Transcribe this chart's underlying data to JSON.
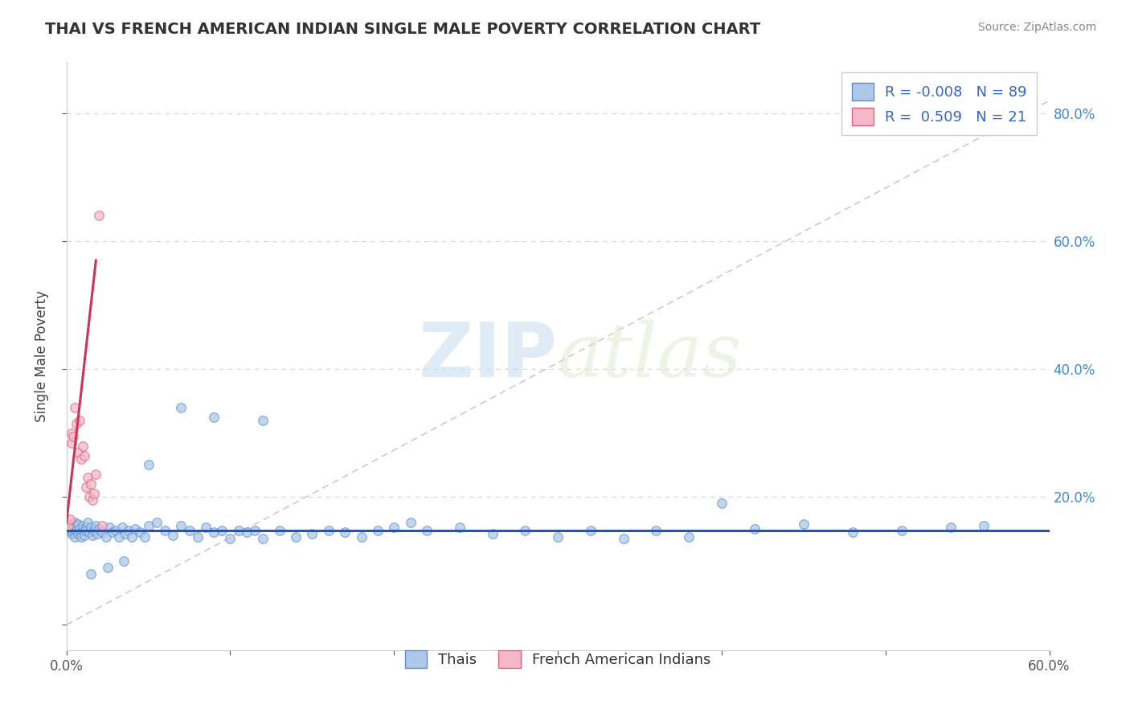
{
  "title": "THAI VS FRENCH AMERICAN INDIAN SINGLE MALE POVERTY CORRELATION CHART",
  "source": "Source: ZipAtlas.com",
  "ylabel": "Single Male Poverty",
  "xlim": [
    0.0,
    0.6
  ],
  "ylim": [
    -0.04,
    0.88
  ],
  "ytick_positions": [
    0.0,
    0.2,
    0.4,
    0.6,
    0.8
  ],
  "ytick_labels": [
    "",
    "20.0%",
    "40.0%",
    "60.0%",
    "80.0%"
  ],
  "xtick_positions": [
    0.0,
    0.1,
    0.2,
    0.3,
    0.4,
    0.5,
    0.6
  ],
  "xtick_labels": [
    "0.0%",
    "",
    "",
    "",
    "",
    "",
    "60.0%"
  ],
  "watermark_zip": "ZIP",
  "watermark_atlas": "atlas",
  "legend_R1": "-0.008",
  "legend_N1": "89",
  "legend_R2": "0.509",
  "legend_N2": "21",
  "color_thai_fill": "#adc8e8",
  "color_thai_edge": "#5b8fcc",
  "color_fai_fill": "#f5b8c8",
  "color_fai_edge": "#d86080",
  "color_thai_line": "#2255bb",
  "color_fai_line": "#cc3355",
  "color_diag_line": "#ccaaaa",
  "thai_x": [
    0.001,
    0.002,
    0.002,
    0.003,
    0.003,
    0.004,
    0.004,
    0.005,
    0.005,
    0.006,
    0.006,
    0.007,
    0.007,
    0.008,
    0.008,
    0.009,
    0.01,
    0.01,
    0.011,
    0.012,
    0.012,
    0.013,
    0.014,
    0.015,
    0.016,
    0.017,
    0.018,
    0.019,
    0.02,
    0.022,
    0.024,
    0.026,
    0.028,
    0.03,
    0.032,
    0.034,
    0.036,
    0.038,
    0.04,
    0.042,
    0.045,
    0.048,
    0.05,
    0.055,
    0.06,
    0.065,
    0.07,
    0.075,
    0.08,
    0.085,
    0.09,
    0.095,
    0.1,
    0.105,
    0.11,
    0.115,
    0.12,
    0.13,
    0.14,
    0.15,
    0.16,
    0.17,
    0.18,
    0.19,
    0.2,
    0.21,
    0.22,
    0.24,
    0.26,
    0.28,
    0.3,
    0.32,
    0.34,
    0.36,
    0.38,
    0.4,
    0.42,
    0.45,
    0.48,
    0.51,
    0.54,
    0.56,
    0.12,
    0.09,
    0.07,
    0.05,
    0.035,
    0.025,
    0.015
  ],
  "thai_y": [
    0.152,
    0.148,
    0.155,
    0.142,
    0.158,
    0.145,
    0.15,
    0.16,
    0.138,
    0.148,
    0.155,
    0.142,
    0.158,
    0.145,
    0.15,
    0.138,
    0.148,
    0.155,
    0.14,
    0.152,
    0.148,
    0.16,
    0.145,
    0.152,
    0.14,
    0.148,
    0.155,
    0.142,
    0.15,
    0.145,
    0.138,
    0.152,
    0.145,
    0.148,
    0.138,
    0.152,
    0.142,
    0.148,
    0.138,
    0.15,
    0.145,
    0.138,
    0.155,
    0.16,
    0.148,
    0.14,
    0.155,
    0.148,
    0.138,
    0.152,
    0.145,
    0.148,
    0.135,
    0.148,
    0.145,
    0.148,
    0.135,
    0.148,
    0.138,
    0.142,
    0.148,
    0.145,
    0.138,
    0.148,
    0.152,
    0.16,
    0.148,
    0.152,
    0.142,
    0.148,
    0.138,
    0.148,
    0.135,
    0.148,
    0.138,
    0.19,
    0.15,
    0.158,
    0.145,
    0.148,
    0.152,
    0.155,
    0.32,
    0.325,
    0.34,
    0.25,
    0.1,
    0.09,
    0.08
  ],
  "fai_x": [
    0.001,
    0.002,
    0.003,
    0.003,
    0.004,
    0.005,
    0.006,
    0.007,
    0.008,
    0.009,
    0.01,
    0.011,
    0.012,
    0.013,
    0.014,
    0.015,
    0.016,
    0.017,
    0.018,
    0.02,
    0.022
  ],
  "fai_y": [
    0.155,
    0.165,
    0.285,
    0.3,
    0.295,
    0.34,
    0.315,
    0.27,
    0.32,
    0.26,
    0.28,
    0.265,
    0.215,
    0.23,
    0.2,
    0.22,
    0.195,
    0.205,
    0.235,
    0.64,
    0.155
  ],
  "fai_trend_x0": 0.0,
  "fai_trend_y0": 0.16,
  "fai_trend_x1": 0.018,
  "fai_trend_y1": 0.57,
  "thai_trend_y": 0.148
}
